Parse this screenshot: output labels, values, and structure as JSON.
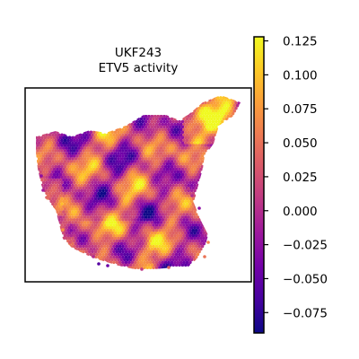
{
  "chart_data": {
    "type": "heatmap",
    "title": "UKF243",
    "subtitle": "ETV5 activity",
    "xlabel": "",
    "ylabel": "",
    "colormap": "plasma",
    "colorbar": {
      "min": -0.09,
      "max": 0.128,
      "ticks": [
        0.125,
        0.1,
        0.075,
        0.05,
        0.025,
        0.0,
        -0.025,
        -0.05,
        -0.075
      ],
      "tick_labels": [
        "0.125",
        "0.100",
        "0.075",
        "0.050",
        "0.025",
        "0.000",
        "−0.025",
        "−0.050",
        "−0.075"
      ]
    },
    "axes_ticks_visible": false,
    "grid": false
  },
  "colors": {
    "frame": "#000000",
    "background": "#ffffff",
    "plasma_stops": [
      "#0d0887",
      "#46039f",
      "#7201a8",
      "#9c179e",
      "#bd3786",
      "#d8576b",
      "#ed7953",
      "#fb9f3a",
      "#fdca26",
      "#f0f921"
    ]
  }
}
